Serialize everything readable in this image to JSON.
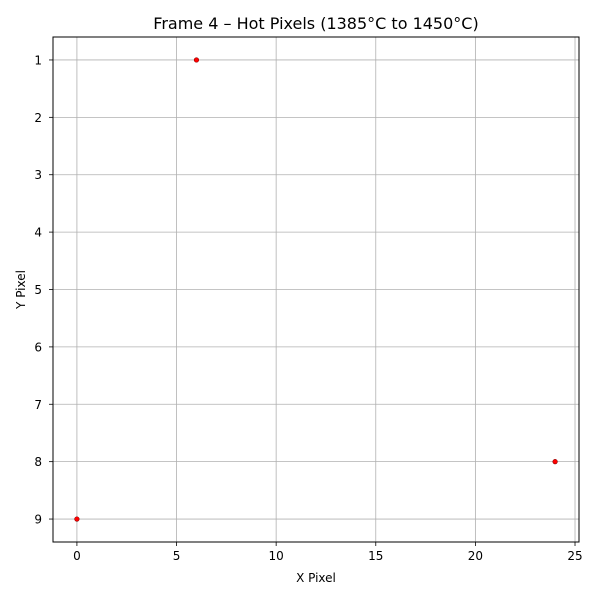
{
  "chart_data": {
    "type": "scatter",
    "title": "Frame 4 – Hot Pixels (1385°C to 1450°C)",
    "xlabel": "X Pixel",
    "ylabel": "Y Pixel",
    "xlim": [
      -1.2,
      25.2
    ],
    "ylim": [
      9.4,
      0.6
    ],
    "y_inverted": true,
    "xticks": [
      0,
      5,
      10,
      15,
      20,
      25
    ],
    "yticks": [
      1,
      2,
      3,
      4,
      5,
      6,
      7,
      8,
      9
    ],
    "grid": true,
    "marker_color": "#ff0000",
    "points": [
      {
        "x": 6,
        "y": 1
      },
      {
        "x": 24,
        "y": 8
      },
      {
        "x": 0,
        "y": 9
      }
    ]
  }
}
